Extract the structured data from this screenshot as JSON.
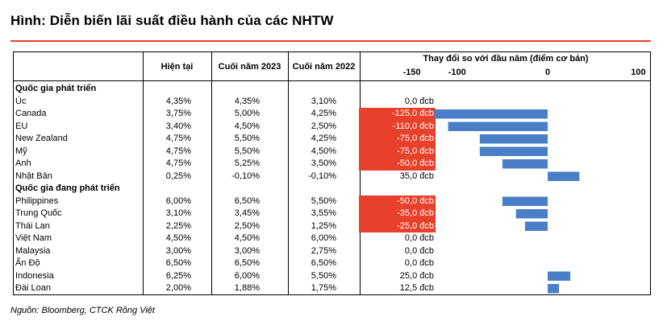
{
  "title": "Hình: Diễn biến lãi suất điều hành của các NHTW",
  "columns": {
    "current": "Hiện tại",
    "end2023": "Cuối năm 2023",
    "end2022": "Cuối năm 2022",
    "change": "Thay đổi so với đầu năm (điểm cơ bản)"
  },
  "groups": {
    "developed": "Quốc gia phát triển",
    "developing": "Quốc gia đang phát triển"
  },
  "rows": [
    {
      "country": "Úc",
      "current": "4,35%",
      "end2023": "4,35%",
      "end2022": "3,10%",
      "change": "0,0 đcb",
      "group": "developed"
    },
    {
      "country": "Canada",
      "current": "3,75%",
      "end2023": "5,00%",
      "end2022": "4,25%",
      "change": "-125,0 đcb",
      "group": "developed"
    },
    {
      "country": "EU",
      "current": "3,40%",
      "end2023": "4,50%",
      "end2022": "2,50%",
      "change": "-110,0 đcb",
      "group": "developed"
    },
    {
      "country": "New Zealand",
      "current": "4,75%",
      "end2023": "5,50%",
      "end2022": "4,25%",
      "change": "-75,0 đcb",
      "group": "developed"
    },
    {
      "country": "Mỹ",
      "current": "4,75%",
      "end2023": "5,50%",
      "end2022": "4,50%",
      "change": "-75,0 đcb",
      "group": "developed"
    },
    {
      "country": "Anh",
      "current": "4,75%",
      "end2023": "5,25%",
      "end2022": "3,50%",
      "change": "-50,0 đcb",
      "group": "developed"
    },
    {
      "country": "Nhật Bản",
      "current": "0,25%",
      "end2023": "-0,10%",
      "end2022": "-0,10%",
      "change": "35,0 đcb",
      "group": "developed"
    },
    {
      "country": "Philippines",
      "current": "6,00%",
      "end2023": "6,50%",
      "end2022": "5,50%",
      "change": "-50,0 đcb",
      "group": "developing"
    },
    {
      "country": "Trung Quốc",
      "current": "3,10%",
      "end2023": "3,45%",
      "end2022": "3,55%",
      "change": "-35,0 đcb",
      "group": "developing"
    },
    {
      "country": "Thái Lan",
      "current": "2,25%",
      "end2023": "2,50%",
      "end2022": "1,25%",
      "change": "-25,0 đcb",
      "group": "developing"
    },
    {
      "country": "Việt Nam",
      "current": "4,50%",
      "end2023": "4,50%",
      "end2022": "6,00%",
      "change": "0,0 đcb",
      "group": "developing"
    },
    {
      "country": "Malaysia",
      "current": "3,00%",
      "end2023": "3,00%",
      "end2022": "2,75%",
      "change": "0,0 đcb",
      "group": "developing"
    },
    {
      "country": "Ấn Độ",
      "current": "6,50%",
      "end2023": "6,50%",
      "end2022": "6,50%",
      "change": "0,0 đcb",
      "group": "developing"
    },
    {
      "country": "Indonesia",
      "current": "6,25%",
      "end2023": "6,00%",
      "end2022": "5,50%",
      "change": "25,0 đcb",
      "group": "developing"
    },
    {
      "country": "Đài Loan",
      "current": "2,00%",
      "end2023": "1,88%",
      "end2022": "1,75%",
      "change": "12,5 đcb",
      "group": "developing"
    }
  ],
  "source": "Nguồn: Bloomberg, CTCK Rồng Việt",
  "colors": {
    "accent": "#e8412b",
    "bar": "#4a7fc8"
  },
  "chart_data": {
    "type": "bar",
    "orientation": "horizontal",
    "title": "Thay đổi so với đầu năm (điểm cơ bản)",
    "categories": [
      "Úc",
      "Canada",
      "EU",
      "New Zealand",
      "Mỹ",
      "Anh",
      "Nhật Bản",
      "Philippines",
      "Trung Quốc",
      "Thái Lan",
      "Việt Nam",
      "Malaysia",
      "Ấn Độ",
      "Indonesia",
      "Đài Loan"
    ],
    "values": [
      0,
      -125,
      -110,
      -75,
      -75,
      -50,
      35,
      -50,
      -35,
      -25,
      0,
      0,
      0,
      25,
      12.5
    ],
    "xticks": [
      "-150",
      "-100",
      "0",
      "100"
    ],
    "xtick_values": [
      -150,
      -100,
      0,
      100
    ],
    "xlim": [
      -155,
      105
    ],
    "grid": false,
    "legend": "none"
  }
}
